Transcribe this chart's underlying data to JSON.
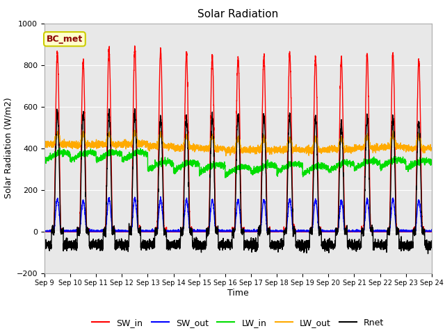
{
  "title": "Solar Radiation",
  "xlabel": "Time",
  "ylabel": "Solar Radiation (W/m2)",
  "annotation": "BC_met",
  "ylim": [
    -200,
    1000
  ],
  "series": {
    "SW_in": {
      "color": "#ff0000",
      "lw": 1.0
    },
    "SW_out": {
      "color": "#0000ff",
      "lw": 1.0
    },
    "LW_in": {
      "color": "#00dd00",
      "lw": 1.0
    },
    "LW_out": {
      "color": "#ffaa00",
      "lw": 1.0
    },
    "Rnet": {
      "color": "#000000",
      "lw": 1.0
    }
  },
  "n_days": 15,
  "pts_per_day": 288,
  "background_color": "#e8e8e8",
  "yticks": [
    -200,
    0,
    200,
    400,
    600,
    800,
    1000
  ],
  "xtick_labels": [
    "Sep 9",
    "Sep 10",
    "Sep 11",
    "Sep 12",
    "Sep 13",
    "Sep 14",
    "Sep 15",
    "Sep 16",
    "Sep 17",
    "Sep 18",
    "Sep 19",
    "Sep 20",
    "Sep 21",
    "Sep 22",
    "Sep 23",
    "Sep 24"
  ],
  "legend_ncol": 5
}
